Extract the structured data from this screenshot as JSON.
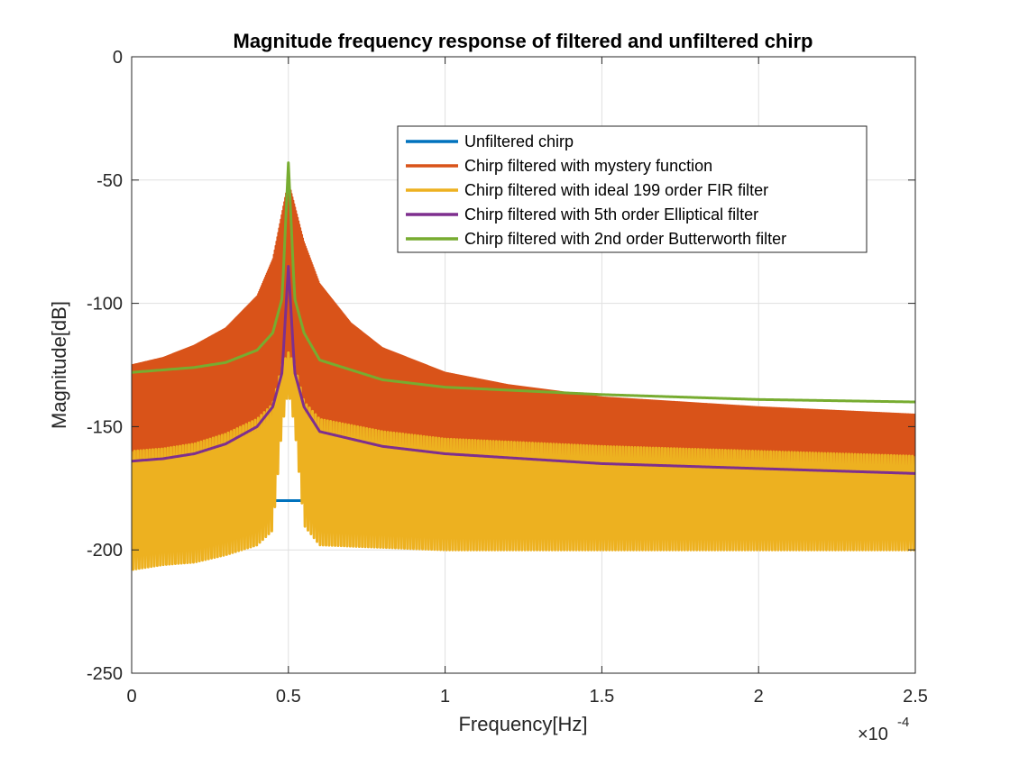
{
  "chart_data": {
    "type": "line",
    "title": "Magnitude frequency response of filtered and unfiltered chirp",
    "xlabel": "Frequency[Hz]",
    "ylabel": "Magnitude[dB]",
    "x_exponent_label": "×10",
    "x_exponent_power": "-4",
    "xlim": [
      0,
      0.00025
    ],
    "ylim": [
      -250,
      0
    ],
    "x_ticks": [
      0,
      5e-05,
      0.0001,
      0.00015,
      0.0002,
      0.00025
    ],
    "x_tick_labels": [
      "0",
      "0.5",
      "1",
      "1.5",
      "2",
      "2.5"
    ],
    "y_ticks": [
      0,
      -50,
      -100,
      -150,
      -200,
      -250
    ],
    "y_tick_labels": [
      "0",
      "-50",
      "-100",
      "-150",
      "-200",
      "-250"
    ],
    "grid": true,
    "legend_position": "top-right",
    "series": [
      {
        "name": "Unfiltered chirp",
        "color": "#0072BD",
        "style": "flat",
        "x": [
          0,
          0.00025
        ],
        "y": [
          -180,
          -180
        ]
      },
      {
        "name": "Chirp filtered with mystery function",
        "color": "#D95319",
        "style": "oscillating-band",
        "x": [
          0,
          1e-05,
          2e-05,
          3e-05,
          4e-05,
          4.5e-05,
          5e-05,
          5.5e-05,
          6e-05,
          7e-05,
          8e-05,
          0.0001,
          0.00012,
          0.00015,
          0.0002,
          0.00025
        ],
        "upper": [
          -125,
          -122,
          -117,
          -110,
          -97,
          -82,
          -50,
          -75,
          -92,
          -108,
          -118,
          -128,
          -133,
          -138,
          -142,
          -145
        ],
        "lower": [
          -165,
          -168,
          -165,
          -160,
          -155,
          -150,
          -125,
          -172,
          -176,
          -178,
          -179,
          -180,
          -181,
          -182,
          -183,
          -185
        ]
      },
      {
        "name": "Chirp filtered with ideal 199 order FIR filter",
        "color": "#EDB120",
        "style": "oscillating-band",
        "x": [
          0,
          1e-05,
          2e-05,
          3e-05,
          4e-05,
          4.5e-05,
          4.8e-05,
          5e-05,
          5.2e-05,
          5.5e-05,
          6e-05,
          8e-05,
          0.0001,
          0.00015,
          0.0002,
          0.00025
        ],
        "upper": [
          -160,
          -159,
          -157,
          -153,
          -147,
          -141,
          -125,
          -120,
          -125,
          -140,
          -147,
          -152,
          -155,
          -158,
          -160,
          -162
        ],
        "lower": [
          -208,
          -206,
          -205,
          -202,
          -198,
          -192,
          -150,
          -135,
          -150,
          -190,
          -198,
          -199,
          -200,
          -200,
          -200,
          -200
        ]
      },
      {
        "name": "Chirp filtered with 5th order Elliptical filter",
        "color": "#7E2F8E",
        "style": "smooth",
        "x": [
          0,
          1e-05,
          2e-05,
          3e-05,
          4e-05,
          4.5e-05,
          4.8e-05,
          5e-05,
          5.2e-05,
          5.5e-05,
          6e-05,
          8e-05,
          0.0001,
          0.00015,
          0.0002,
          0.00025
        ],
        "y": [
          -164,
          -163,
          -161,
          -157,
          -150,
          -142,
          -128,
          -85,
          -128,
          -142,
          -152,
          -158,
          -161,
          -165,
          -167,
          -169
        ]
      },
      {
        "name": "Chirp filtered with 2nd order Butterworth filter",
        "color": "#77AC30",
        "style": "smooth",
        "x": [
          0,
          1e-05,
          2e-05,
          3e-05,
          4e-05,
          4.5e-05,
          4.8e-05,
          5e-05,
          5.2e-05,
          5.5e-05,
          6e-05,
          8e-05,
          0.0001,
          0.00015,
          0.0002,
          0.00025
        ],
        "y": [
          -128,
          -127,
          -126,
          -124,
          -119,
          -112,
          -98,
          -43,
          -98,
          -112,
          -123,
          -131,
          -134,
          -137,
          -139,
          -140
        ]
      }
    ]
  }
}
